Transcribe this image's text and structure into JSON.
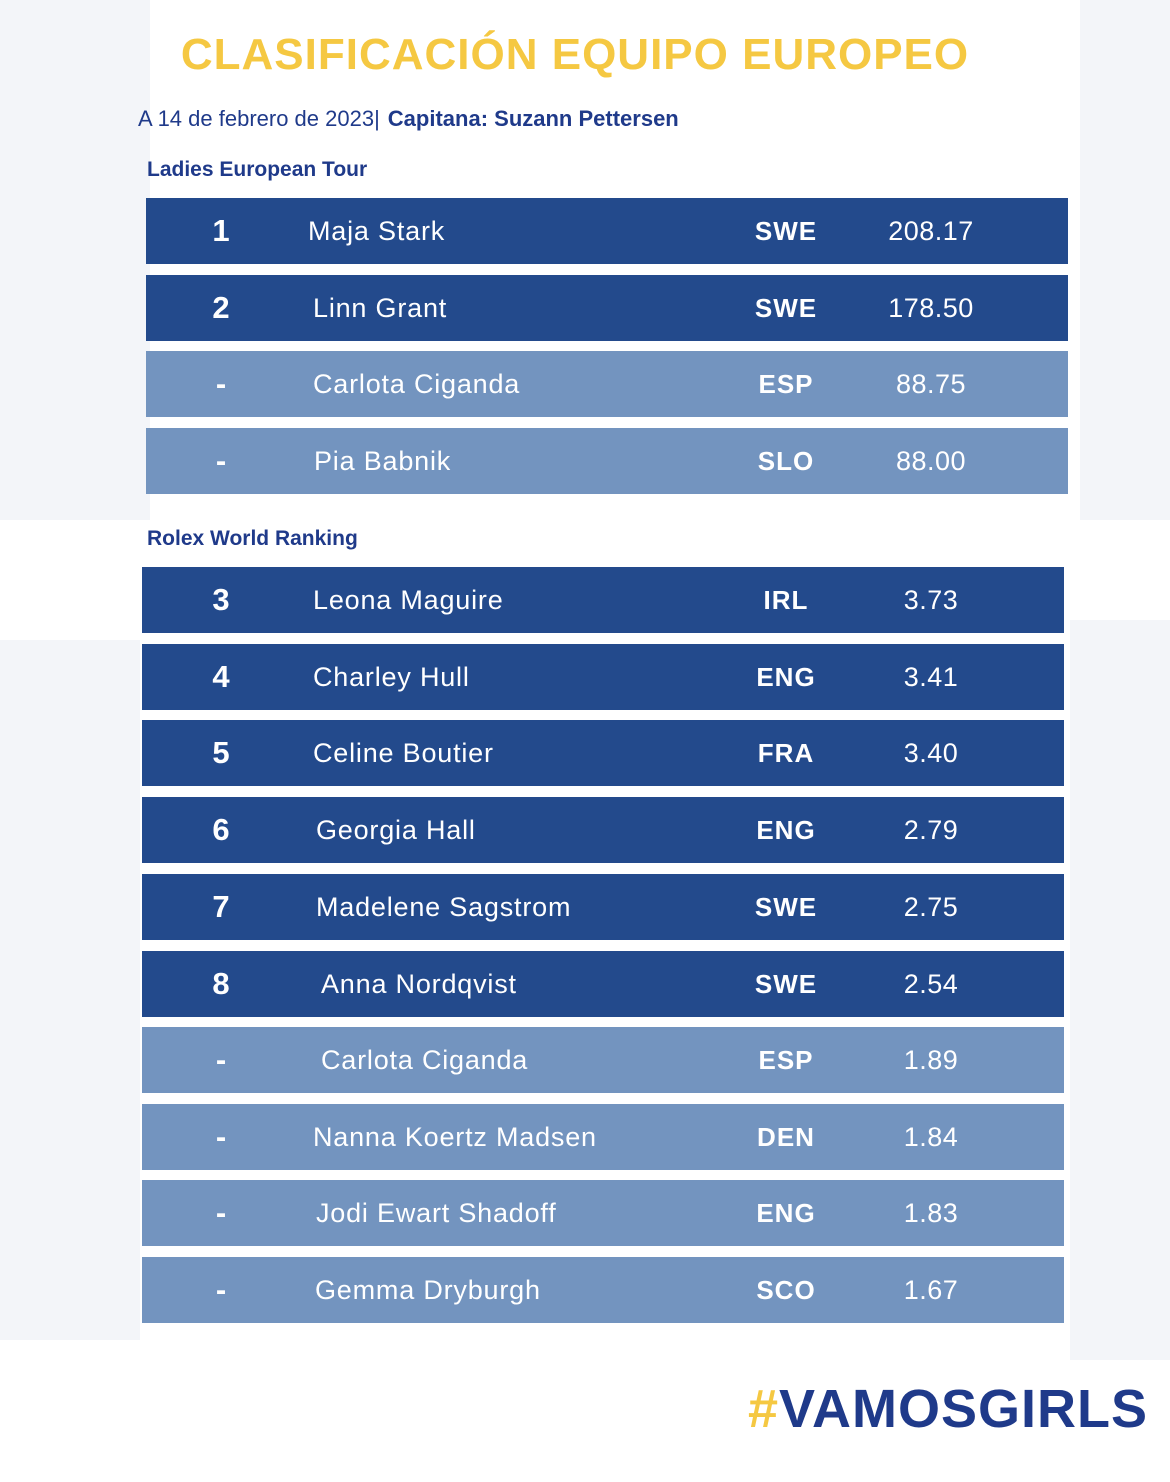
{
  "header": {
    "title": "CLASIFICACIÓN EQUIPO EUROPEO",
    "date": "A 14 de febrero de 2023|",
    "captain": "Capitana: Suzann Pettersen"
  },
  "colors": {
    "title": "#f5c842",
    "text_blue": "#1f3a8a",
    "row_qualified": "#234a8c",
    "row_other": "#7394bf"
  },
  "sections": [
    {
      "label": "Ladies European Tour",
      "rows": [
        {
          "rank": "1",
          "name": "Maja Stark",
          "country": "SWE",
          "points": "208.17",
          "status": "qualified"
        },
        {
          "rank": "2",
          "name": "Linn Grant",
          "country": "SWE",
          "points": "178.50",
          "status": "qualified"
        },
        {
          "rank": "-",
          "name": "Carlota Ciganda",
          "country": "ESP",
          "points": "88.75",
          "status": "other"
        },
        {
          "rank": "-",
          "name": "Pia Babnik",
          "country": "SLO",
          "points": "88.00",
          "status": "other"
        }
      ]
    },
    {
      "label": "Rolex World Ranking",
      "rows": [
        {
          "rank": "3",
          "name": "Leona Maguire",
          "country": "IRL",
          "points": "3.73",
          "status": "qualified"
        },
        {
          "rank": "4",
          "name": "Charley Hull",
          "country": "ENG",
          "points": "3.41",
          "status": "qualified"
        },
        {
          "rank": "5",
          "name": "Celine Boutier",
          "country": "FRA",
          "points": "3.40",
          "status": "qualified"
        },
        {
          "rank": "6",
          "name": "Georgia Hall",
          "country": "ENG",
          "points": "2.79",
          "status": "qualified"
        },
        {
          "rank": "7",
          "name": "Madelene Sagstrom",
          "country": "SWE",
          "points": "2.75",
          "status": "qualified"
        },
        {
          "rank": "8",
          "name": "Anna Nordqvist",
          "country": "SWE",
          "points": "2.54",
          "status": "qualified"
        },
        {
          "rank": "-",
          "name": "Carlota Ciganda",
          "country": "ESP",
          "points": "1.89",
          "status": "other"
        },
        {
          "rank": "-",
          "name": "Nanna Koertz Madsen",
          "country": "DEN",
          "points": "1.84",
          "status": "other"
        },
        {
          "rank": "-",
          "name": "Jodi Ewart Shadoff",
          "country": "ENG",
          "points": "1.83",
          "status": "other"
        },
        {
          "rank": "-",
          "name": "Gemma Dryburgh",
          "country": "SCO",
          "points": "1.67",
          "status": "other"
        }
      ]
    }
  ],
  "footer": {
    "hash": "#",
    "hashtag": "VAMOSGIRLS"
  }
}
